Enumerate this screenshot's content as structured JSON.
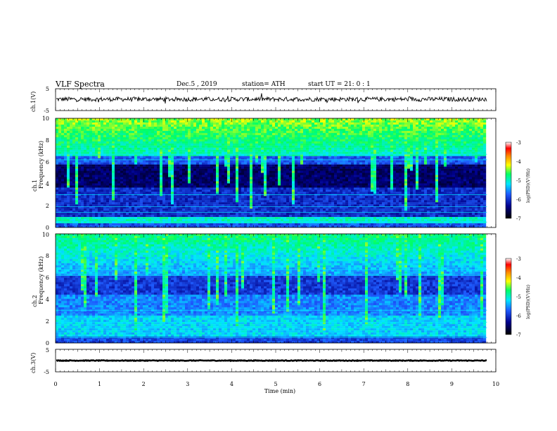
{
  "header": {
    "title": "VLF  Spectra",
    "date": "Dec.5  , 2019",
    "station": "station= ATH",
    "start": "start  UT  =    21: 0   : 1"
  },
  "colors": {
    "ink": "#000000",
    "spectrogram_low": "#00008b",
    "spectrogram_mid": "#1e5cff",
    "spectrogram_high": "#00ff66",
    "spectrogram_peak": "#ff0000"
  },
  "chart_data": [
    {
      "type": "line",
      "name": "ch1-waveform",
      "ylabel": "ch.1(V)",
      "ylim": [
        -5,
        5
      ],
      "yticks": [
        "5",
        "-5"
      ],
      "xlim": [
        0,
        10
      ],
      "data_xrange": [
        0,
        9.8
      ],
      "baseline": 0.2,
      "noise_amplitude": 1.0
    },
    {
      "type": "heatmap",
      "name": "ch1-spectrogram",
      "ylabel": "Frequency (kHz)",
      "channel_label": "ch.1",
      "ylim": [
        0,
        10
      ],
      "yticks": [
        "0",
        "2",
        "4",
        "6",
        "8",
        "10"
      ],
      "xlim": [
        0,
        10
      ],
      "data_xrange": [
        0,
        9.8
      ],
      "colorbar": {
        "label": "log(PSD)(V²/Hz)",
        "range": [
          -7,
          -3
        ],
        "ticks": [
          "-3",
          "-4",
          "-5",
          "-6",
          "-7"
        ]
      }
    },
    {
      "type": "heatmap",
      "name": "ch2-spectrogram",
      "ylabel": "Frequency (kHz)",
      "channel_label": "ch.2",
      "ylim": [
        0,
        10
      ],
      "yticks": [
        "0",
        "2",
        "4",
        "6",
        "8",
        "10"
      ],
      "xlim": [
        0,
        10
      ],
      "data_xrange": [
        0,
        9.8
      ],
      "colorbar": {
        "label": "log(PSD)(V²/Hz)",
        "range": [
          -7,
          -3
        ],
        "ticks": [
          "-3",
          "-4",
          "-5",
          "-6",
          "-7"
        ]
      }
    },
    {
      "type": "line",
      "name": "ch3-waveform",
      "ylabel": "ch.3(V)",
      "ylim": [
        -5,
        5
      ],
      "yticks": [
        "5",
        "-5"
      ],
      "xlim": [
        0,
        10
      ],
      "data_xrange": [
        0,
        9.8
      ],
      "baseline": 0.0,
      "noise_amplitude": 0.15
    }
  ],
  "xaxis": {
    "label": "Time  (min)",
    "ticks": [
      "0",
      "1",
      "2",
      "3",
      "4",
      "5",
      "6",
      "7",
      "8",
      "9",
      "10"
    ]
  }
}
